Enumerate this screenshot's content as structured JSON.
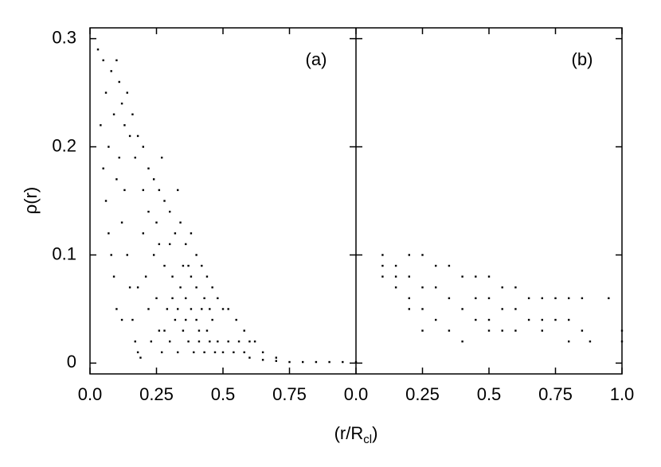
{
  "chart_data": [
    {
      "type": "scatter",
      "annotation": "(a)",
      "ylabel": "ρ(r)",
      "xlabel": [
        "(r/R",
        "cl",
        ")"
      ],
      "color": "#000000",
      "xlim": [
        0,
        1
      ],
      "ylim": [
        -0.01,
        0.31
      ],
      "xticks": [
        {
          "value": 0,
          "label": "0.0"
        },
        0.25,
        0.5,
        0.75
      ],
      "yticks": [
        0,
        0.1,
        0.2,
        0.3
      ],
      "x": [
        0.03,
        0.05,
        0.06,
        0.08,
        0.1,
        0.04,
        0.07,
        0.09,
        0.11,
        0.12,
        0.13,
        0.14,
        0.15,
        0.16,
        0.17,
        0.18,
        0.2,
        0.22,
        0.24,
        0.26,
        0.28,
        0.3,
        0.32,
        0.34,
        0.36,
        0.38,
        0.4,
        0.42,
        0.44,
        0.46,
        0.48,
        0.5,
        0.52,
        0.55,
        0.58,
        0.6,
        0.62,
        0.65,
        0.7,
        0.06,
        0.08,
        0.1,
        0.12,
        0.1,
        0.12,
        0.14,
        0.15,
        0.16,
        0.17,
        0.18,
        0.19,
        0.2,
        0.21,
        0.22,
        0.23,
        0.24,
        0.25,
        0.26,
        0.27,
        0.28,
        0.29,
        0.3,
        0.31,
        0.32,
        0.33,
        0.34,
        0.35,
        0.36,
        0.37,
        0.38,
        0.39,
        0.4,
        0.41,
        0.42,
        0.43,
        0.44,
        0.45,
        0.46,
        0.47,
        0.48,
        0.5,
        0.52,
        0.54,
        0.56,
        0.58,
        0.6,
        0.65,
        0.7,
        0.75,
        0.8,
        0.85,
        0.9,
        0.95,
        1.0,
        0.2,
        0.25,
        0.3,
        0.35,
        0.4,
        0.45,
        0.18,
        0.22,
        0.27,
        0.33,
        0.38,
        0.43,
        0.26,
        0.31,
        0.36,
        0.41,
        0.28,
        0.33,
        0.37,
        0.05,
        0.07,
        0.09,
        0.11,
        0.13
      ],
      "values": [
        0.29,
        0.28,
        0.25,
        0.27,
        0.28,
        0.22,
        0.2,
        0.23,
        0.26,
        0.24,
        0.22,
        0.25,
        0.21,
        0.23,
        0.19,
        0.21,
        0.2,
        0.18,
        0.17,
        0.16,
        0.15,
        0.14,
        0.12,
        0.13,
        0.11,
        0.12,
        0.1,
        0.09,
        0.08,
        0.07,
        0.06,
        0.05,
        0.05,
        0.04,
        0.03,
        0.02,
        0.02,
        0.01,
        0.005,
        0.15,
        0.1,
        0.05,
        0.04,
        0.17,
        0.13,
        0.1,
        0.07,
        0.04,
        0.02,
        0.01,
        0.005,
        0.12,
        0.08,
        0.05,
        0.02,
        0.1,
        0.06,
        0.03,
        0.01,
        0.09,
        0.05,
        0.02,
        0.08,
        0.04,
        0.01,
        0.07,
        0.03,
        0.06,
        0.02,
        0.05,
        0.01,
        0.04,
        0.02,
        0.05,
        0.01,
        0.03,
        0.02,
        0.04,
        0.01,
        0.02,
        0.01,
        0.02,
        0.01,
        0.02,
        0.01,
        0.005,
        0.003,
        0.002,
        0.001,
        0.001,
        0.001,
        0.001,
        0.001,
        0.001,
        0.16,
        0.13,
        0.11,
        0.09,
        0.07,
        0.05,
        0.07,
        0.14,
        0.19,
        0.16,
        0.08,
        0.06,
        0.11,
        0.06,
        0.04,
        0.03,
        0.03,
        0.05,
        0.09,
        0.18,
        0.12,
        0.08,
        0.19,
        0.16
      ]
    },
    {
      "type": "scatter",
      "annotation": "(b)",
      "color": "#000000",
      "xlim": [
        0,
        1
      ],
      "ylim": [
        -0.01,
        0.31
      ],
      "xticks": [
        {
          "value": 0,
          "label": "0.0"
        },
        0.25,
        0.5,
        0.75,
        {
          "value": 1,
          "label": "1.0"
        }
      ],
      "yticks": [
        0,
        0.1,
        0.2,
        0.3
      ],
      "x": [
        0.1,
        0.1,
        0.1,
        0.15,
        0.15,
        0.15,
        0.2,
        0.2,
        0.2,
        0.2,
        0.25,
        0.25,
        0.25,
        0.25,
        0.3,
        0.3,
        0.3,
        0.35,
        0.35,
        0.35,
        0.4,
        0.4,
        0.4,
        0.45,
        0.45,
        0.45,
        0.5,
        0.5,
        0.5,
        0.5,
        0.55,
        0.55,
        0.55,
        0.6,
        0.6,
        0.6,
        0.65,
        0.65,
        0.7,
        0.7,
        0.7,
        0.75,
        0.75,
        0.8,
        0.8,
        0.8,
        0.85,
        0.85,
        0.88,
        0.95,
        1.0,
        1.0
      ],
      "values": [
        0.1,
        0.09,
        0.08,
        0.09,
        0.08,
        0.07,
        0.1,
        0.08,
        0.06,
        0.05,
        0.1,
        0.07,
        0.05,
        0.03,
        0.09,
        0.07,
        0.04,
        0.09,
        0.06,
        0.03,
        0.08,
        0.05,
        0.02,
        0.08,
        0.06,
        0.04,
        0.08,
        0.06,
        0.04,
        0.03,
        0.07,
        0.05,
        0.03,
        0.07,
        0.05,
        0.03,
        0.06,
        0.04,
        0.06,
        0.04,
        0.03,
        0.06,
        0.04,
        0.06,
        0.04,
        0.02,
        0.06,
        0.03,
        0.02,
        0.06,
        0.03,
        0.02
      ]
    }
  ]
}
